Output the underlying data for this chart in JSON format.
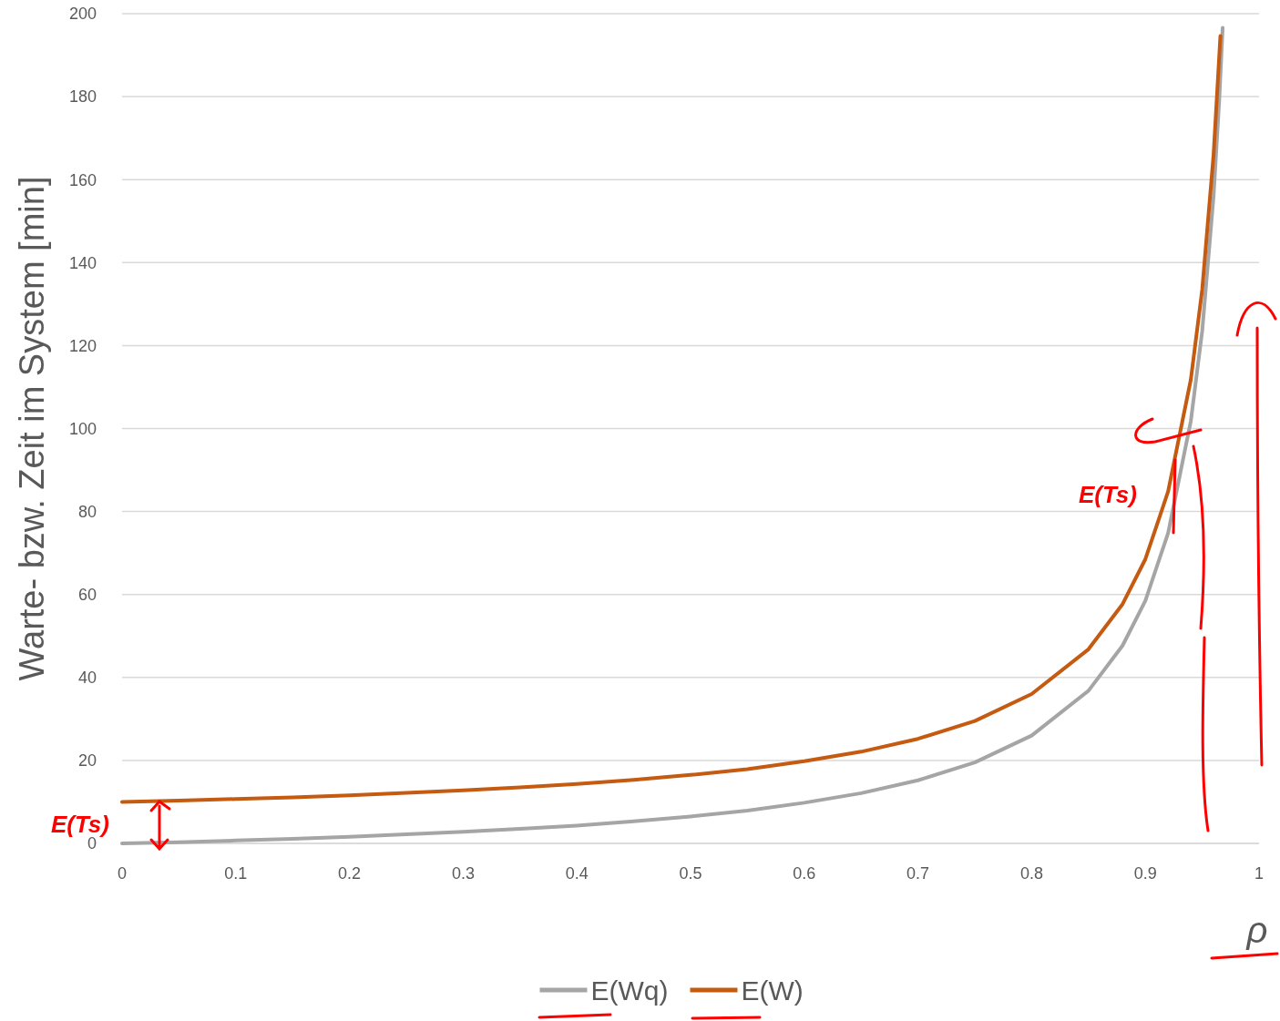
{
  "chart_data": {
    "type": "line",
    "ylabel": "Warte- bzw. Zeit im System [min]",
    "xlabel": "ρ",
    "xlim": [
      0,
      1
    ],
    "xticks": [
      0,
      0.1,
      0.2,
      0.3,
      0.4,
      0.5,
      0.6,
      0.7,
      0.8,
      0.9,
      1
    ],
    "ylim": [
      0,
      200
    ],
    "yticks": [
      0,
      20,
      40,
      60,
      80,
      100,
      120,
      140,
      160,
      180,
      200
    ],
    "grid": "y",
    "legend": "bottom",
    "line_style": "solid",
    "series": [
      {
        "name": "E(Wq)",
        "color": "#a5a5a5",
        "x": [
          0,
          0.05,
          0.1,
          0.15,
          0.2,
          0.25,
          0.3,
          0.35,
          0.4,
          0.45,
          0.5,
          0.55,
          0.6,
          0.65,
          0.7,
          0.75,
          0.8,
          0.85,
          0.88,
          0.9,
          0.92,
          0.94,
          0.95,
          0.96,
          0.965,
          0.968
        ],
        "values": [
          0,
          0.3,
          0.7,
          1.1,
          1.6,
          2.2,
          2.8,
          3.5,
          4.3,
          5.3,
          6.5,
          7.9,
          9.8,
          12.1,
          15.2,
          19.5,
          26,
          36.8,
          47.7,
          58.5,
          74.8,
          101.8,
          123.5,
          156,
          179.2,
          196.6
        ]
      },
      {
        "name": "E(W)",
        "color": "#c55a11",
        "x": [
          0,
          0.05,
          0.1,
          0.15,
          0.2,
          0.25,
          0.3,
          0.35,
          0.4,
          0.45,
          0.5,
          0.55,
          0.6,
          0.65,
          0.7,
          0.75,
          0.8,
          0.85,
          0.88,
          0.9,
          0.92,
          0.94,
          0.95,
          0.96,
          0.966
        ],
        "values": [
          10,
          10.3,
          10.7,
          11.1,
          11.6,
          12.2,
          12.8,
          13.5,
          14.3,
          15.3,
          16.5,
          17.9,
          19.8,
          22.1,
          25.2,
          29.5,
          36,
          46.8,
          57.7,
          68.5,
          84.8,
          111.8,
          133.5,
          166,
          194.6
        ]
      }
    ],
    "annotations": [
      "E(Ts)",
      "E(Ts)"
    ]
  }
}
